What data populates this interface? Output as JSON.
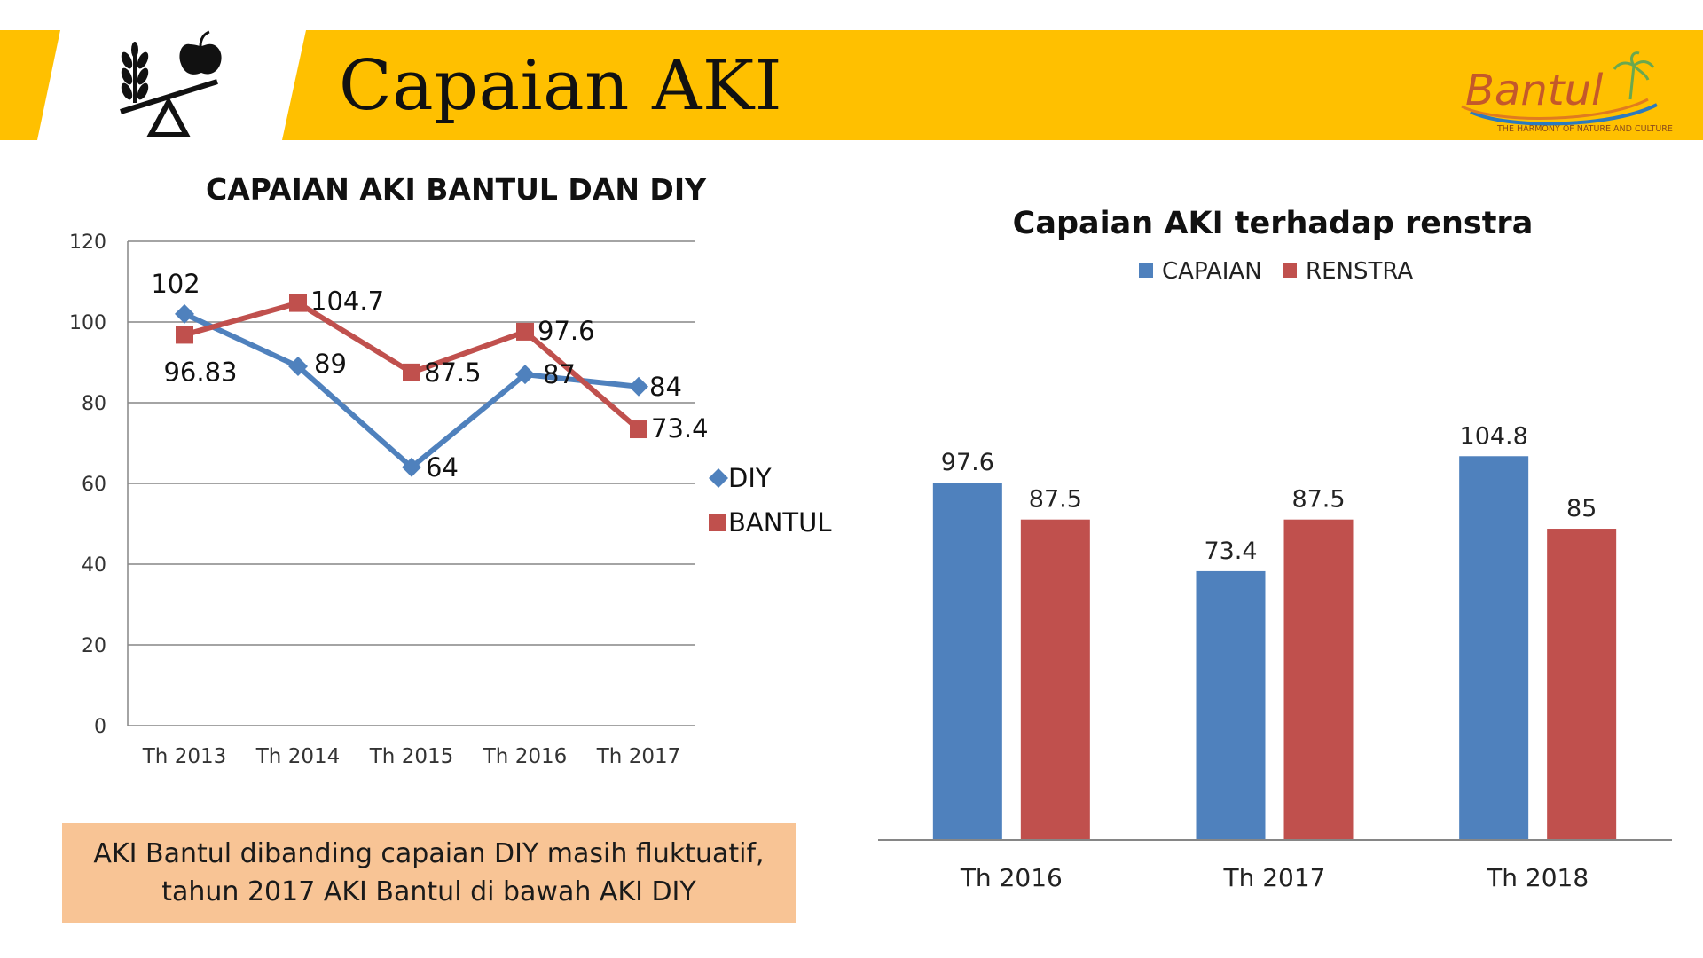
{
  "header": {
    "title": "Capaian AKI",
    "logo_text": "Bantul",
    "logo_tagline": "THE HARMONY OF NATURE AND CULTURE",
    "banner_color": "#ffc000",
    "icon": "balance-scale-icon"
  },
  "conclusion": {
    "line1": "AKI Bantul dibanding capaian DIY masih fluktuatif,",
    "line2": "tahun 2017 AKI Bantul di bawah AKI DIY",
    "background_color": "#f8c495"
  },
  "chart_data": [
    {
      "type": "line",
      "title": "CAPAIAN AKI BANTUL DAN DIY",
      "categories": [
        "Th 2013",
        "Th 2014",
        "Th 2015",
        "Th 2016",
        "Th 2017"
      ],
      "ylim": [
        0,
        120
      ],
      "yticks": [
        0,
        20,
        40,
        60,
        80,
        100,
        120
      ],
      "grid": true,
      "legend_position": "right",
      "series": [
        {
          "name": "DIY",
          "color": "#4f81bd",
          "marker": "diamond",
          "values": [
            102,
            89,
            64,
            87,
            84
          ],
          "labels": [
            "102",
            "89",
            "64",
            "87",
            "84"
          ]
        },
        {
          "name": "BANTUL",
          "color": "#c0504d",
          "marker": "square",
          "values": [
            96.83,
            104.7,
            87.5,
            97.6,
            73.4
          ],
          "labels": [
            "96.83",
            "104.7",
            "87.5",
            "97.6",
            "73.4"
          ]
        }
      ]
    },
    {
      "type": "bar",
      "title": "Capaian AKI terhadap renstra",
      "categories": [
        "Th 2016",
        "Th 2017",
        "Th 2018"
      ],
      "legend_position": "top",
      "grid": false,
      "series": [
        {
          "name": "CAPAIAN",
          "color": "#4f81bd",
          "values": [
            97.6,
            73.4,
            104.8
          ],
          "labels": [
            "97.6",
            "73.4",
            "104.8"
          ]
        },
        {
          "name": "RENSTRA",
          "color": "#c0504d",
          "values": [
            87.5,
            87.5,
            85
          ],
          "labels": [
            "87.5",
            "87.5",
            "85"
          ]
        }
      ]
    }
  ]
}
